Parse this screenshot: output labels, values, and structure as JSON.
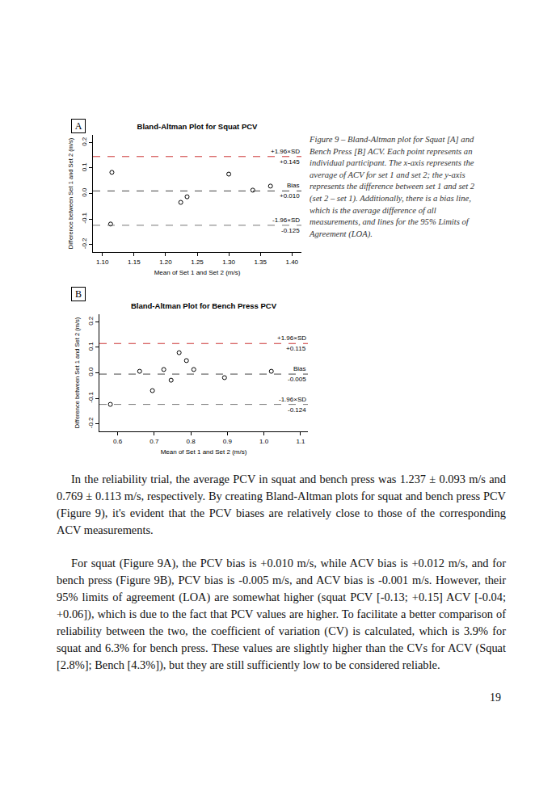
{
  "chart_data": [
    {
      "type": "scatter",
      "title": "Bland-Altman Plot for Squat PCV",
      "x_label": "Mean of Set 1 and Set 2 (m/s)",
      "y_label": "Difference between Set 1 and Set 2 (m/s)",
      "x": [
        1.115,
        1.3,
        1.366,
        1.338,
        1.234,
        1.224,
        1.113
      ],
      "values": [
        0.083,
        0.076,
        0.029,
        0.013,
        -0.013,
        -0.035,
        -0.12
      ],
      "color": "#000000",
      "marker": "circle-open",
      "xlim": [
        1.085,
        1.415
      ],
      "xticks": [
        {
          "value": 1.1,
          "label": "1.10"
        },
        1.15,
        {
          "value": 1.2,
          "label": "1.20"
        },
        1.25,
        {
          "value": 1.3,
          "label": "1.30"
        },
        1.35,
        {
          "value": 1.4,
          "label": "1.40"
        }
      ],
      "ylim": [
        -0.23,
        0.23
      ],
      "yticks": [
        -0.2,
        -0.1,
        {
          "value": 0,
          "label": "0.0"
        },
        0.1,
        0.2
      ],
      "grid": false,
      "reference_lines": [
        {
          "label": "+1.96×SD",
          "value": 0.145,
          "value_label": "+0.145",
          "color": "#cc3333",
          "line_style": "dashed"
        },
        {
          "label": "Bias",
          "value": 0.01,
          "value_label": "+0.010",
          "color": "#444444",
          "line_style": "dashed"
        },
        {
          "label": "-1.96×SD",
          "value": -0.125,
          "value_label": "-0.125",
          "color": "#777777",
          "line_style": "dashed"
        }
      ]
    },
    {
      "type": "scatter",
      "title": "Bland-Altman Plot for Bench Press PCV",
      "x_label": "Mean of Set 1 and Set 2 (m/s)",
      "y_label": "Difference between Set 1 and Set 2 (m/s)",
      "x": [
        0.66,
        0.726,
        0.768,
        0.788,
        0.808,
        0.695,
        0.746,
        0.892,
        1.02,
        0.58
      ],
      "values": [
        0.006,
        0.013,
        0.079,
        0.048,
        0.013,
        -0.07,
        -0.029,
        -0.019,
        0.006,
        -0.124
      ],
      "color": "#000000",
      "marker": "circle-open",
      "xlim": [
        0.55,
        1.12
      ],
      "xticks": [
        0.6,
        0.7,
        0.8,
        0.9,
        {
          "value": 1,
          "label": "1.0"
        },
        1.1
      ],
      "ylim": [
        -0.23,
        0.23
      ],
      "yticks": [
        -0.2,
        -0.1,
        {
          "value": 0,
          "label": "0.0"
        },
        0.1,
        0.2
      ],
      "grid": false,
      "reference_lines": [
        {
          "label": "+1.96×SD",
          "value": 0.115,
          "value_label": "+0.115",
          "color": "#cc3333",
          "line_style": "dashed"
        },
        {
          "label": "Bias",
          "value": -0.005,
          "value_label": "-0.005",
          "color": "#444444",
          "line_style": "dashed"
        },
        {
          "label": "-1.96×SD",
          "value": -0.124,
          "value_label": "-0.124",
          "color": "#777777",
          "line_style": "dashed"
        }
      ]
    }
  ],
  "figure": {
    "panel_labels": [
      "A",
      "B"
    ],
    "caption": "Figure 9 – Bland-Altman plot for Squat [A] and Bench Press [B] ACV. Each point represents an individual participant. The x-axis represents the average of ACV for set 1 and set 2; the y-axis represents the difference between set 1 and set 2 (set 2 – set 1). Additionally, there is a bias line, which is the average difference of all measurements, and lines for the 95% Limits of Agreement (LOA)."
  },
  "paragraphs": [
    "In the reliability trial, the average PCV in squat and bench press was 1.237 ± 0.093 m/s and 0.769 ± 0.113 m/s, respectively. By creating Bland-Altman plots for squat and bench press PCV (Figure 9), it's evident that the PCV biases are relatively close to those of the corresponding ACV measurements.",
    "For squat (Figure 9A), the PCV bias is +0.010 m/s, while ACV bias is +0.012 m/s, and for bench press (Figure 9B), PCV bias is -0.005 m/s, and ACV bias is -0.001 m/s. However, their 95% limits of agreement (LOA) are somewhat higher (squat PCV [-0.13; +0.15] ACV [-0.04; +0.06]), which is due to the fact that PCV values are higher. To facilitate a better comparison of reliability between the two, the coefficient of variation (CV) is calculated, which is 3.9% for squat and 6.3% for bench press. These values are slightly higher than the CVs for ACV (Squat [2.8%]; Bench [4.3%]), but they are still sufficiently low to be considered reliable."
  ],
  "page_number": "19"
}
